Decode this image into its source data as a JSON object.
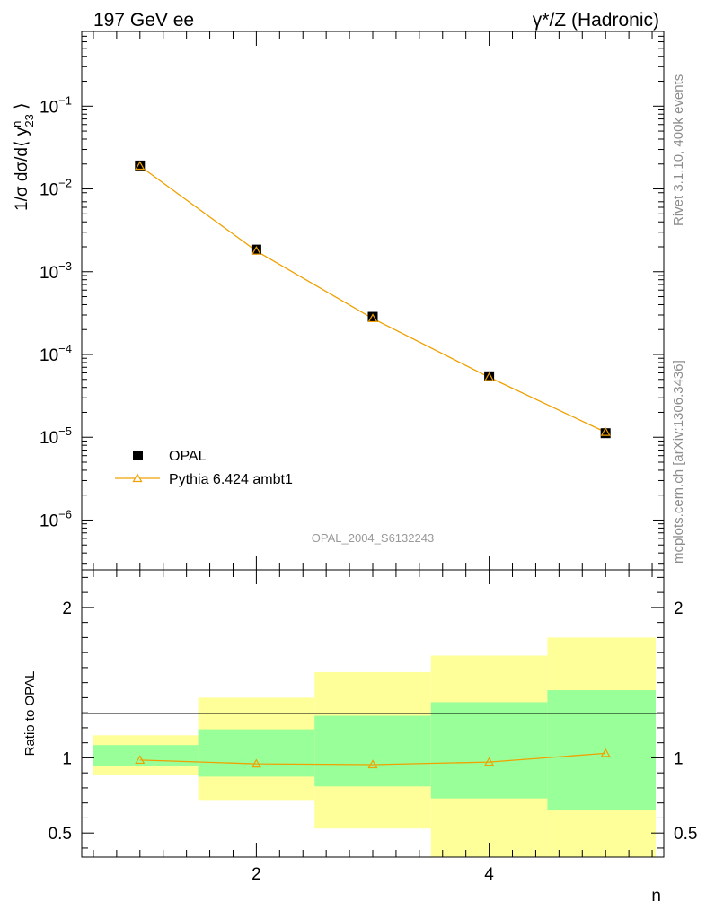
{
  "header": {
    "left": "197 GeV ee",
    "right": "γ*/Z (Hadronic)"
  },
  "side_text": {
    "rivet": "Rivet 3.1.10,  400k events",
    "source": "mcplots.cern.ch [arXiv:1306.3436]"
  },
  "analysis_id": "OPAL_2004_S6132243",
  "colors": {
    "mc_line": "#f0a000",
    "band_inner": "#99ff99",
    "band_outer": "#ffff99",
    "data_marker": "#000000"
  },
  "chart_data": [
    {
      "type": "scatter",
      "panel": "main",
      "ylabel": "1/σ dσ/d⟨ y^n_23 ⟩",
      "yscale": "log",
      "xlim": [
        0.5,
        5.5
      ],
      "ylim": [
        2.5e-07,
        0.8
      ],
      "y_ticks": [
        {
          "value": 1e-06,
          "exp": "−6"
        },
        {
          "value": 1e-05,
          "exp": "−5"
        },
        {
          "value": 0.0001,
          "exp": "−4"
        },
        {
          "value": 0.001,
          "exp": "−3"
        },
        {
          "value": 0.01,
          "exp": "−2"
        },
        {
          "value": 0.1,
          "exp": "−1"
        }
      ],
      "tick_base": "10",
      "legend_position": "bottom-left",
      "series": [
        {
          "name": "OPAL",
          "marker": "square",
          "x": [
            1,
            2,
            3,
            4,
            5
          ],
          "y": [
            0.0192,
            0.00185,
            0.000285,
            5.45e-05,
            1.12e-05
          ]
        },
        {
          "name": "Pythia 6.424 ambt1",
          "marker": "triangle",
          "x": [
            1,
            2,
            3,
            4,
            5
          ],
          "y": [
            0.0189,
            0.00178,
            0.000272,
            5.3e-05,
            1.15e-05
          ]
        }
      ]
    },
    {
      "type": "line",
      "panel": "ratio",
      "xlabel": "n",
      "ylabel": "Ratio to OPAL",
      "xlim": [
        0.5,
        5.5
      ],
      "ylim": [
        0.34,
        2.25
      ],
      "x_ticks": [
        2,
        4
      ],
      "y_ticks": [
        0.5,
        1,
        2
      ],
      "y_tick_labels": [
        "0.5",
        "1",
        "2"
      ],
      "bins": [
        {
          "lo": 0.5,
          "hi": 1.5,
          "inner": [
            0.945,
            1.085
          ],
          "outer": [
            0.885,
            1.15
          ]
        },
        {
          "lo": 1.5,
          "hi": 2.5,
          "inner": [
            0.875,
            1.19
          ],
          "outer": [
            0.72,
            1.4
          ]
        },
        {
          "lo": 2.5,
          "hi": 3.5,
          "inner": [
            0.81,
            1.28
          ],
          "outer": [
            0.53,
            1.57
          ]
        },
        {
          "lo": 3.5,
          "hi": 4.5,
          "inner": [
            0.73,
            1.37
          ],
          "outer": [
            0.34,
            1.68
          ]
        },
        {
          "lo": 4.5,
          "hi": 5.5,
          "inner": [
            0.65,
            1.45
          ],
          "outer": [
            0.34,
            1.8
          ]
        }
      ],
      "series": [
        {
          "name": "Pythia 6.424 ambt1",
          "x": [
            1,
            2,
            3,
            4,
            5
          ],
          "y": [
            0.985,
            0.96,
            0.955,
            0.972,
            1.03
          ]
        }
      ]
    }
  ]
}
